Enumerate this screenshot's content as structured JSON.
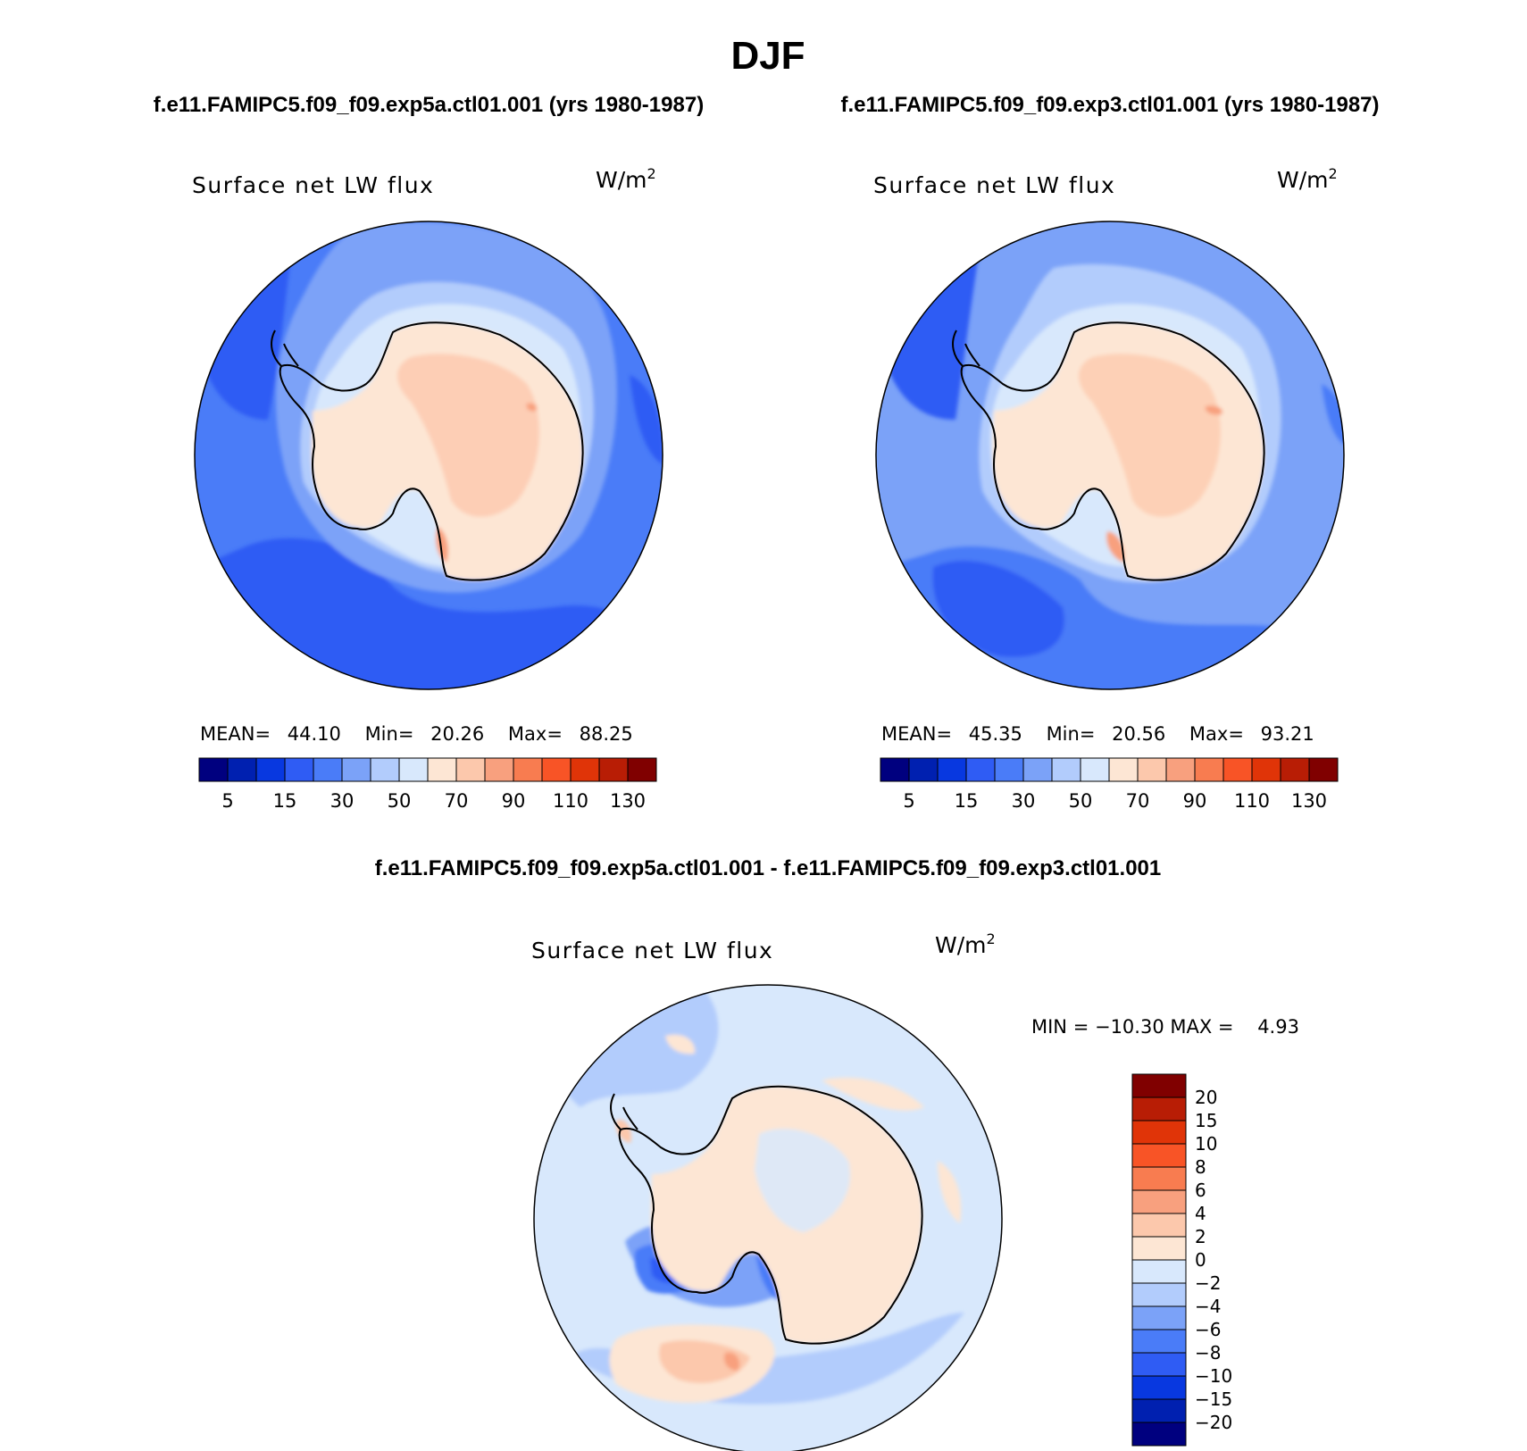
{
  "chart_data": [
    {
      "type": "heatmap",
      "projection": "south-polar-stereographic",
      "case": "f.e11.FAMIPC5.f09_f09.exp5a.ctl01.001 (yrs 1980-1987)",
      "title": "Surface net LW flux",
      "units": "W/m",
      "units_exp": "2",
      "stats": {
        "mean_label": "MEAN=",
        "mean": "44.10",
        "min_label": "Min=",
        "min": "20.26",
        "max_label": "Max=",
        "max": "88.25"
      },
      "colorbar_ticks": [
        "5",
        "15",
        "30",
        "50",
        "70",
        "90",
        "110",
        "130"
      ]
    },
    {
      "type": "heatmap",
      "projection": "south-polar-stereographic",
      "case": "f.e11.FAMIPC5.f09_f09.exp3.ctl01.001 (yrs 1980-1987)",
      "title": "Surface net LW flux",
      "units": "W/m",
      "units_exp": "2",
      "stats": {
        "mean_label": "MEAN=",
        "mean": "45.35",
        "min_label": "Min=",
        "min": "20.56",
        "max_label": "Max=",
        "max": "93.21"
      },
      "colorbar_ticks": [
        "5",
        "15",
        "30",
        "50",
        "70",
        "90",
        "110",
        "130"
      ]
    },
    {
      "type": "heatmap",
      "projection": "south-polar-stereographic",
      "case": "f.e11.FAMIPC5.f09_f09.exp5a.ctl01.001 - f.e11.FAMIPC5.f09_f09.exp3.ctl01.001",
      "title": "Surface net LW flux",
      "units": "W/m",
      "units_exp": "2",
      "stats": {
        "text": "MIN = −10.30 MAX =    4.93"
      },
      "colorbar_ticks": [
        "20",
        "15",
        "10",
        "8",
        "6",
        "4",
        "2",
        "0",
        "−2",
        "−4",
        "−6",
        "−8",
        "−10",
        "−15",
        "−20"
      ]
    }
  ],
  "header": {
    "season": "DJF"
  },
  "palettes": {
    "abs": [
      "#00007f",
      "#0020b0",
      "#0838e0",
      "#2f5cf4",
      "#4a7cf8",
      "#7ba2f8",
      "#b2ccfc",
      "#d8e8fc",
      "#fde6d4",
      "#fcc8ac",
      "#f8a07e",
      "#f87c50",
      "#f85426",
      "#e03408",
      "#b81d05",
      "#800000"
    ],
    "diff": [
      "#800000",
      "#b81d05",
      "#e03408",
      "#f85426",
      "#f87c50",
      "#f8a07e",
      "#fcc8ac",
      "#fde6d4",
      "#d8e8fc",
      "#b2ccfc",
      "#7ba2f8",
      "#4a7cf8",
      "#2f5cf4",
      "#0838e0",
      "#0020b0",
      "#00007f"
    ]
  }
}
